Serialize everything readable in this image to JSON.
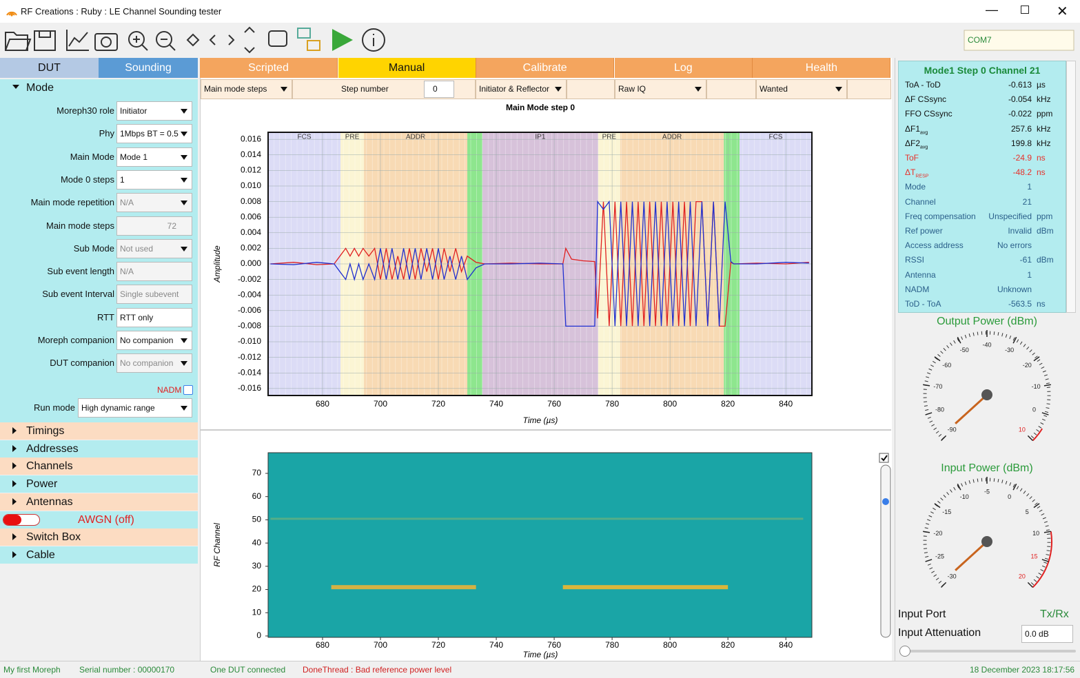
{
  "window": {
    "title": "RF Creations : Ruby : LE Channel Sounding tester",
    "com_port": "COM7"
  },
  "left_panel": {
    "tabs": [
      "DUT",
      "Sounding"
    ],
    "mode_header": "Mode",
    "fields": [
      {
        "label": "Moreph30 role",
        "value": "Initiator",
        "kind": "dropdown"
      },
      {
        "label": "Phy",
        "value": "1Mbps BT = 0.5",
        "kind": "dropdown"
      },
      {
        "label": "Main Mode",
        "value": "Mode 1",
        "kind": "dropdown"
      },
      {
        "label": "Mode 0 steps",
        "value": "1",
        "kind": "dropdown"
      },
      {
        "label": "Main mode repetition",
        "value": "N/A",
        "kind": "dropdown",
        "disabled": true
      },
      {
        "label": "Main mode steps",
        "value": "72",
        "kind": "spin",
        "disabled": true
      },
      {
        "label": "Sub Mode",
        "value": "Not used",
        "kind": "dropdown",
        "disabled": true
      },
      {
        "label": "Sub event length",
        "value": "N/A",
        "kind": "input",
        "disabled": true
      },
      {
        "label": "Sub event Interval",
        "value": "Single subevent",
        "kind": "input",
        "disabled": true
      },
      {
        "label": "RTT",
        "value": "RTT only",
        "kind": "input"
      },
      {
        "label": "Moreph companion",
        "value": "No companion",
        "kind": "dropdown"
      },
      {
        "label": "DUT companion",
        "value": "No companion",
        "kind": "dropdown",
        "disabled": true
      }
    ],
    "nadm": "NADM",
    "run_mode": {
      "label": "Run mode",
      "value": "High dynamic range"
    },
    "sections": [
      "Timings",
      "Addresses",
      "Channels",
      "Power",
      "Antennas",
      "AWGN (off)",
      "Switch Box",
      "Cable"
    ]
  },
  "center": {
    "tabs": [
      "Scripted",
      "Manual",
      "Calibrate",
      "Log",
      "Health"
    ],
    "active_tab": 1,
    "controls": {
      "steps_select": "Main mode steps",
      "step_label": "Step number",
      "step_value": "0",
      "role_select": "Initiator & Reflector",
      "view_select": "Raw IQ",
      "signal_select": "Wanted"
    }
  },
  "iq_plot": {
    "type": "line",
    "title": "Main Mode step 0",
    "x_label": "Time (µs)",
    "y_label": "Amplitude",
    "xlim": [
      661.2,
      849
    ],
    "ylim": [
      -0.0169,
      0.0169
    ],
    "grid": true,
    "xticks": [
      680,
      700,
      720,
      740,
      760,
      780,
      800,
      820,
      840
    ],
    "yticks": [
      0.016,
      0.014,
      0.012,
      {
        "value": 0.01,
        "label": "0.010"
      },
      0.008,
      0.006,
      0.004,
      0.002,
      {
        "value": 0,
        "label": "0.000"
      },
      -0.002,
      -0.004,
      -0.006,
      -0.008,
      {
        "value": -0.01,
        "label": "-0.010"
      },
      -0.012,
      -0.014,
      -0.016
    ],
    "bands": [
      {
        "label": "FCS",
        "start": 661.2,
        "end": 686.2,
        "color": "#dcdcf6"
      },
      {
        "label": "PRE",
        "start": 686.2,
        "end": 694.3,
        "color": "#fbf5d4"
      },
      {
        "label": "ADDR",
        "start": 694.3,
        "end": 730,
        "color": "#f8dab4"
      },
      {
        "label": null,
        "start": 730,
        "end": 735.2,
        "color": "#8ee68e"
      },
      {
        "label": "IP1",
        "start": 735.2,
        "end": 775.2,
        "color": "#d7c2da"
      },
      {
        "label": "PRE",
        "start": 775.2,
        "end": 782.8,
        "color": "#fbf5d4"
      },
      {
        "label": "ADDR",
        "start": 782.8,
        "end": 818.6,
        "color": "#f8dab4"
      },
      {
        "label": null,
        "start": 818.6,
        "end": 824,
        "color": "#8ee68e"
      },
      {
        "label": "FCS",
        "start": 824,
        "end": 849,
        "color": "#dcdcf6"
      }
    ],
    "x": [
      662,
      670,
      678,
      684,
      686,
      688,
      689.5,
      691,
      692.5,
      694,
      696,
      698,
      700,
      702,
      704,
      706,
      708,
      710,
      712,
      714,
      716,
      718,
      720,
      722,
      724,
      726,
      728,
      730,
      733,
      736,
      745,
      755,
      763,
      764,
      766,
      770,
      774,
      775,
      777,
      779,
      781,
      783,
      785,
      787,
      789,
      791,
      793,
      795,
      797,
      799,
      801,
      803,
      805,
      807,
      809,
      811,
      813,
      815,
      817,
      819,
      821,
      822,
      830,
      840,
      848
    ],
    "series": [
      {
        "name": "I",
        "color": "#e02020",
        "values": [
          0,
          0.0002,
          -0.0001,
          0,
          0.001,
          0.002,
          0.001,
          0.002,
          0.001,
          0.002,
          0.001,
          0.002,
          -0.002,
          0.002,
          -0.002,
          0.001,
          -0.002,
          0.002,
          -0.002,
          0.002,
          -0.001,
          0.002,
          -0.002,
          0.002,
          -0.001,
          0.002,
          -0.001,
          0.001,
          0.0002,
          0,
          0.0001,
          0,
          0,
          0.002,
          0.0006,
          0.0004,
          0.0003,
          -0.007,
          0.008,
          -0.008,
          0.008,
          -0.008,
          0.008,
          -0.008,
          0.008,
          -0.008,
          0.008,
          -0.008,
          0.008,
          -0.008,
          0.008,
          -0.008,
          0.008,
          -0.008,
          0.008,
          0.008,
          -0.008,
          0.008,
          -0.008,
          -0.008,
          0.0002,
          0,
          0.0001,
          0,
          0.0002
        ]
      },
      {
        "name": "Q",
        "color": "#2030d0",
        "values": [
          0,
          -0.0001,
          0.0002,
          0,
          -0.001,
          -0.002,
          0,
          -0.002,
          0,
          -0.002,
          0,
          -0.002,
          0.002,
          -0.002,
          0.002,
          -0.002,
          0.002,
          -0.002,
          0.002,
          -0.002,
          0.002,
          -0.002,
          0.002,
          -0.002,
          0.001,
          -0.002,
          0.001,
          -0.002,
          -0.0005,
          0,
          0,
          0.0001,
          0,
          -0.008,
          -0.008,
          -0.008,
          -0.008,
          0.008,
          0.007,
          0.008,
          -0.008,
          0.008,
          -0.008,
          0.008,
          -0.008,
          0.008,
          -0.008,
          0.008,
          -0.008,
          0.008,
          -0.008,
          0.008,
          -0.008,
          0.008,
          -0.008,
          0.008,
          -0.008,
          0.008,
          -0.008,
          0.008,
          0.0003,
          0,
          0,
          0.0002,
          0.0001
        ]
      }
    ]
  },
  "spectrogram": {
    "type": "heatmap",
    "x_label": "Time (µs)",
    "y_label": "RF Channel",
    "xlim": [
      661.2,
      849
    ],
    "ylim": [
      -0.6,
      78.9
    ],
    "xticks": [
      680,
      700,
      720,
      740,
      760,
      780,
      800,
      820,
      840
    ],
    "yticks": [
      0,
      10,
      20,
      30,
      40,
      50,
      60,
      70
    ],
    "background": "#1aa5a6",
    "traces": [
      {
        "channel": 21,
        "start": 683,
        "end": 733,
        "color": "#e8b43a"
      },
      {
        "channel": 21,
        "start": 763,
        "end": 820,
        "color": "#f0b830"
      },
      {
        "channel": 50,
        "start": 662,
        "end": 846,
        "color": "#8fb86a"
      }
    ]
  },
  "measurements": {
    "title": "Mode1 Step 0 Channel 21",
    "rows": [
      {
        "label": "ToA - ToD",
        "value": "-0.613",
        "unit": "µs"
      },
      {
        "label": "ΔF CSsync",
        "value": "-0.054",
        "unit": "kHz"
      },
      {
        "label": "FFO CSsync",
        "value": "-0.022",
        "unit": "ppm"
      },
      {
        "label": "ΔF1",
        "sub": "avg",
        "value": "257.6",
        "unit": "kHz"
      },
      {
        "label": "ΔF2",
        "sub": "avg",
        "value": "199.8",
        "unit": "kHz"
      },
      {
        "label": "ToF",
        "value": "-24.9",
        "unit": "ns",
        "color": "#e8302a"
      },
      {
        "label": "ΔT",
        "sub": "RESP",
        "value": "-48.2",
        "unit": "ns",
        "color": "#e8302a"
      },
      {
        "label": "Mode",
        "value": "1",
        "color": "#2a5f8a"
      },
      {
        "label": "Channel",
        "value": "21",
        "color": "#2a5f8a"
      },
      {
        "label": "Freq compensation",
        "value": "Unspecified",
        "unit": "ppm",
        "color": "#2a5f8a"
      },
      {
        "label": "Ref power",
        "value": "Invalid",
        "unit": "dBm",
        "color": "#2a5f8a"
      },
      {
        "label": "Access address",
        "value": "No errors",
        "color": "#2a5f8a"
      },
      {
        "label": "RSSI",
        "value": "-61",
        "unit": "dBm",
        "color": "#2a5f8a"
      },
      {
        "label": "Antenna",
        "value": "1",
        "color": "#2a5f8a"
      },
      {
        "label": "NADM",
        "value": "Unknown",
        "color": "#2a5f8a"
      },
      {
        "label": "ToD - ToA",
        "value": "-563.5",
        "unit": "ns",
        "color": "#2a5f8a"
      }
    ]
  },
  "gauges": [
    {
      "title": "Output Power (dBm)",
      "min": -90,
      "max": 10,
      "ticks": [
        -90,
        -80,
        -70,
        -60,
        -50,
        -40,
        -30,
        -20,
        -10,
        0,
        10
      ],
      "value": -89,
      "red_from": 5
    },
    {
      "title": "Input Power (dBm)",
      "min": -30,
      "max": 20,
      "ticks": [
        -30,
        -25,
        -20,
        -15,
        -10,
        -5,
        0,
        5,
        10,
        15,
        20
      ],
      "value": -29.5,
      "red_from": 10
    }
  ],
  "input": {
    "port_label": "Input Port",
    "port_value": "Tx/Rx",
    "attenuation_label": "Input Attenuation",
    "attenuation_value": "0.0 dB"
  },
  "status": {
    "name": "My first Moreph",
    "serial": "Serial number : 00000170",
    "dut": "One DUT connected",
    "message": "DoneThread : Bad reference power level",
    "date": "18 December 2023 18:17:56"
  }
}
